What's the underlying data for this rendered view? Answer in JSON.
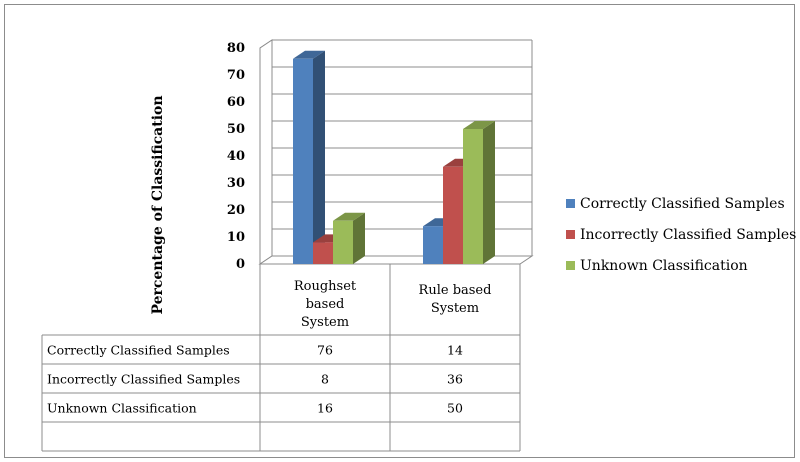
{
  "chart_data": {
    "type": "bar",
    "ylabel": "Percentage of Classification",
    "xlabel": "",
    "ylim": [
      0,
      80
    ],
    "yticks": [
      0,
      10,
      20,
      30,
      40,
      50,
      60,
      70,
      80
    ],
    "grid": true,
    "legend_position": "right",
    "categories": [
      [
        "Roughset",
        "based",
        "System"
      ],
      [
        "Rule based",
        "System"
      ]
    ],
    "series": [
      {
        "name": "Correctly Classified Samples",
        "values": [
          76,
          14
        ],
        "color": "#4f81bd"
      },
      {
        "name": "Incorrectly Classified Samples",
        "values": [
          8,
          36
        ],
        "color": "#c0504d"
      },
      {
        "name": "Unknown Classification",
        "values": [
          16,
          50
        ],
        "color": "#9bbb59"
      }
    ],
    "data_table": {
      "rows": [
        {
          "label": "Correctly Classified Samples",
          "values": [
            "76",
            "14"
          ]
        },
        {
          "label": "Incorrectly Classified Samples",
          "values": [
            "8",
            "36"
          ]
        },
        {
          "label": "Unknown Classification",
          "values": [
            "16",
            "50"
          ]
        }
      ]
    }
  }
}
